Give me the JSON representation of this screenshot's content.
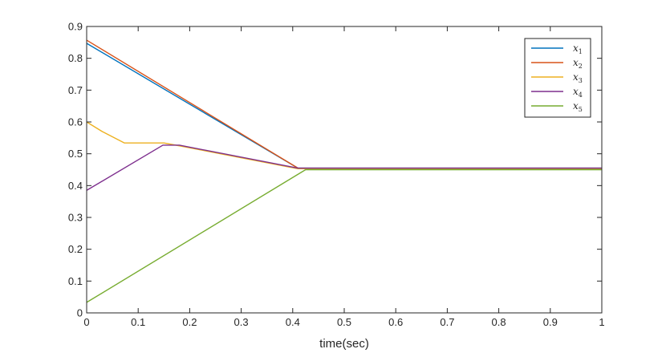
{
  "chart_data": {
    "type": "line",
    "title": "",
    "xlabel": "time(sec)",
    "ylabel": "",
    "xlim": [
      0,
      1
    ],
    "ylim": [
      0,
      0.9
    ],
    "xticks": [
      0,
      0.1,
      0.2,
      0.3,
      0.4,
      0.5,
      0.6,
      0.7,
      0.8,
      0.9,
      1
    ],
    "xtick_labels": [
      "0",
      "0.1",
      "0.2",
      "0.3",
      "0.4",
      "0.5",
      "0.6",
      "0.7",
      "0.8",
      "0.9",
      "1"
    ],
    "yticks": [
      0,
      0.1,
      0.2,
      0.3,
      0.4,
      0.5,
      0.6,
      0.7,
      0.8,
      0.9
    ],
    "ytick_labels": [
      "0",
      "0.1",
      "0.2",
      "0.3",
      "0.4",
      "0.5",
      "0.6",
      "0.7",
      "0.8",
      "0.9"
    ],
    "grid": false,
    "legend_position": "top-right",
    "series": [
      {
        "name": "x",
        "sub": "1",
        "color": "#0072BD",
        "points": [
          [
            0,
            0.847
          ],
          [
            0.41,
            0.455
          ],
          [
            1,
            0.455
          ]
        ]
      },
      {
        "name": "x",
        "sub": "2",
        "color": "#D95319",
        "points": [
          [
            0,
            0.857
          ],
          [
            0.41,
            0.455
          ],
          [
            1,
            0.455
          ]
        ]
      },
      {
        "name": "x",
        "sub": "3",
        "color": "#EDB120",
        "points": [
          [
            0,
            0.6
          ],
          [
            0.03,
            0.57
          ],
          [
            0.073,
            0.534
          ],
          [
            0.15,
            0.534
          ],
          [
            0.18,
            0.525
          ],
          [
            0.41,
            0.453
          ],
          [
            1,
            0.453
          ]
        ]
      },
      {
        "name": "x",
        "sub": "4",
        "color": "#7E2F8E",
        "points": [
          [
            0,
            0.385
          ],
          [
            0.148,
            0.527
          ],
          [
            0.18,
            0.527
          ],
          [
            0.41,
            0.455
          ],
          [
            1,
            0.455
          ]
        ]
      },
      {
        "name": "x",
        "sub": "5",
        "color": "#77AC30",
        "points": [
          [
            0,
            0.033
          ],
          [
            0.425,
            0.45
          ],
          [
            1,
            0.45
          ]
        ]
      }
    ]
  }
}
